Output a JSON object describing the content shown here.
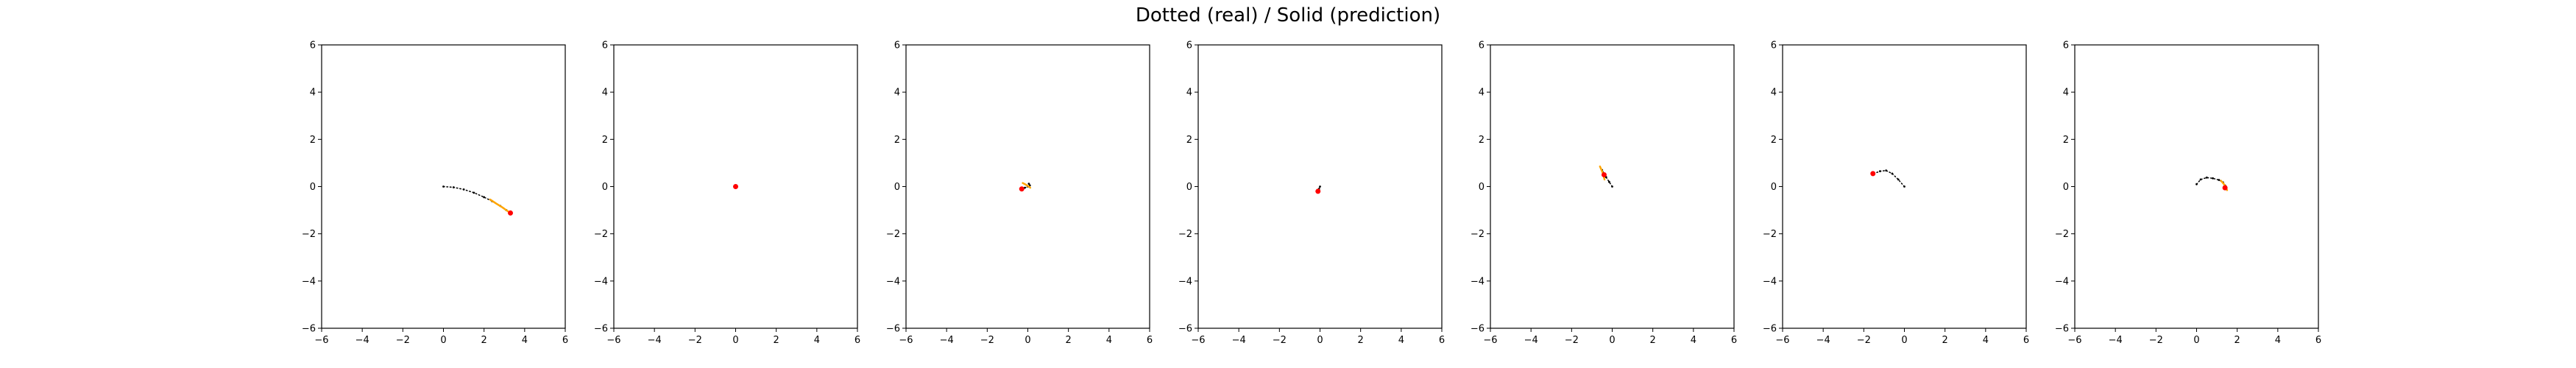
{
  "title": "Dotted (real) / Solid (prediction)",
  "colors": {
    "real": "#000000",
    "prediction": "#ffa500",
    "start_marker": "#ff0000",
    "axes": "#000000",
    "background": "#ffffff"
  },
  "chart_data": [
    {
      "type": "line",
      "xlim": [
        -6,
        6
      ],
      "ylim": [
        -6,
        6
      ],
      "xticks": [
        -6,
        -4,
        -2,
        0,
        2,
        4,
        6
      ],
      "yticks": [
        -6,
        -4,
        -2,
        0,
        2,
        4,
        6
      ],
      "grid": false,
      "series": [
        {
          "role": "real",
          "style": "dotted",
          "x": [
            0,
            0.5,
            1.0,
            1.5,
            2.0,
            2.4,
            2.8,
            3.1,
            3.3
          ],
          "y": [
            0,
            -0.03,
            -0.12,
            -0.26,
            -0.45,
            -0.62,
            -0.82,
            -1.0,
            -1.12
          ]
        },
        {
          "role": "prediction",
          "style": "solid",
          "x": [
            2.3,
            2.6,
            2.9,
            3.1,
            3.3
          ],
          "y": [
            -0.55,
            -0.72,
            -0.88,
            -1.0,
            -1.12
          ]
        }
      ],
      "start_marker": {
        "x": 3.3,
        "y": -1.12
      }
    },
    {
      "type": "line",
      "xlim": [
        -6,
        6
      ],
      "ylim": [
        -6,
        6
      ],
      "xticks": [
        -6,
        -4,
        -2,
        0,
        2,
        4,
        6
      ],
      "yticks": [
        -6,
        -4,
        -2,
        0,
        2,
        4,
        6
      ],
      "grid": false,
      "series": [
        {
          "role": "real",
          "style": "dotted",
          "x": [
            0,
            0.02,
            0.04
          ],
          "y": [
            0,
            0.01,
            0.02
          ]
        },
        {
          "role": "prediction",
          "style": "solid",
          "x": [
            0,
            0.03
          ],
          "y": [
            0,
            0.02
          ]
        }
      ],
      "start_marker": {
        "x": 0.0,
        "y": 0.0
      }
    },
    {
      "type": "line",
      "xlim": [
        -6,
        6
      ],
      "ylim": [
        -6,
        6
      ],
      "xticks": [
        -6,
        -4,
        -2,
        0,
        2,
        4,
        6
      ],
      "yticks": [
        -6,
        -4,
        -2,
        0,
        2,
        4,
        6
      ],
      "grid": false,
      "series": [
        {
          "role": "real",
          "style": "dotted",
          "x": [
            -0.3,
            -0.15,
            0.0,
            0.1,
            0.05
          ],
          "y": [
            -0.1,
            -0.05,
            0.0,
            0.05,
            0.12
          ]
        },
        {
          "role": "prediction",
          "style": "solid",
          "x": [
            -0.25,
            -0.1,
            0.05,
            0.12
          ],
          "y": [
            0.15,
            0.08,
            0.0,
            -0.05
          ]
        }
      ],
      "start_marker": {
        "x": -0.3,
        "y": -0.1
      }
    },
    {
      "type": "line",
      "xlim": [
        -6,
        6
      ],
      "ylim": [
        -6,
        6
      ],
      "xticks": [
        -6,
        -4,
        -2,
        0,
        2,
        4,
        6
      ],
      "yticks": [
        -6,
        -4,
        -2,
        0,
        2,
        4,
        6
      ],
      "grid": false,
      "series": [
        {
          "role": "real",
          "style": "dotted",
          "x": [
            0,
            -0.05,
            -0.1
          ],
          "y": [
            0,
            -0.1,
            -0.2
          ]
        },
        {
          "role": "prediction",
          "style": "solid",
          "x": [
            -0.05,
            -0.1
          ],
          "y": [
            -0.15,
            -0.25
          ]
        }
      ],
      "start_marker": {
        "x": -0.1,
        "y": -0.2
      }
    },
    {
      "type": "line",
      "xlim": [
        -6,
        6
      ],
      "ylim": [
        -6,
        6
      ],
      "xticks": [
        -6,
        -4,
        -2,
        0,
        2,
        4,
        6
      ],
      "yticks": [
        -6,
        -4,
        -2,
        0,
        2,
        4,
        6
      ],
      "grid": false,
      "series": [
        {
          "role": "real",
          "style": "dotted",
          "x": [
            0,
            -0.15,
            -0.3,
            -0.4,
            -0.5
          ],
          "y": [
            0,
            0.2,
            0.4,
            0.55,
            0.7
          ]
        },
        {
          "role": "prediction",
          "style": "solid",
          "x": [
            -0.6,
            -0.5,
            -0.42,
            -0.38
          ],
          "y": [
            0.85,
            0.65,
            0.45,
            0.3
          ]
        }
      ],
      "start_marker": {
        "x": -0.4,
        "y": 0.5
      }
    },
    {
      "type": "line",
      "xlim": [
        -6,
        6
      ],
      "ylim": [
        -6,
        6
      ],
      "xticks": [
        -6,
        -4,
        -2,
        0,
        2,
        4,
        6
      ],
      "yticks": [
        -6,
        -4,
        -2,
        0,
        2,
        4,
        6
      ],
      "grid": false,
      "series": [
        {
          "role": "real",
          "style": "dotted",
          "x": [
            0,
            -0.3,
            -0.6,
            -0.9,
            -1.2,
            -1.5
          ],
          "y": [
            0,
            0.3,
            0.55,
            0.68,
            0.65,
            0.55
          ]
        },
        {
          "role": "prediction",
          "style": "solid",
          "x": [
            -1.5,
            -1.6
          ],
          "y": [
            0.55,
            0.52
          ]
        }
      ],
      "start_marker": {
        "x": -1.55,
        "y": 0.55
      }
    },
    {
      "type": "line",
      "xlim": [
        -6,
        6
      ],
      "ylim": [
        -6,
        6
      ],
      "xticks": [
        -6,
        -4,
        -2,
        0,
        2,
        4,
        6
      ],
      "yticks": [
        -6,
        -4,
        -2,
        0,
        2,
        4,
        6
      ],
      "grid": false,
      "series": [
        {
          "role": "real",
          "style": "dotted",
          "x": [
            0,
            0.2,
            0.5,
            0.8,
            1.1,
            1.3,
            1.4
          ],
          "y": [
            0.1,
            0.3,
            0.38,
            0.35,
            0.28,
            0.18,
            0.05
          ]
        },
        {
          "role": "prediction",
          "style": "solid",
          "x": [
            1.2,
            1.35,
            1.45,
            1.5
          ],
          "y": [
            0.25,
            0.1,
            -0.05,
            -0.15
          ]
        }
      ],
      "start_marker": {
        "x": 1.4,
        "y": -0.05
      }
    }
  ]
}
